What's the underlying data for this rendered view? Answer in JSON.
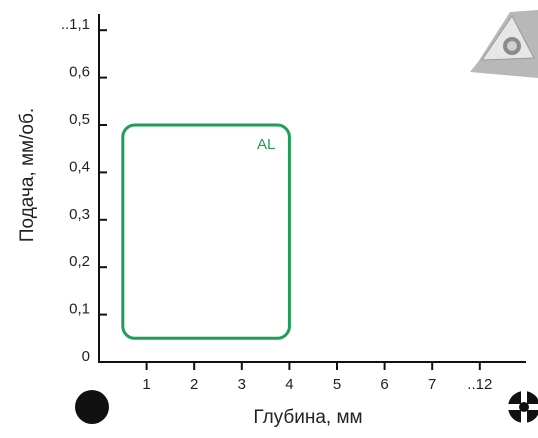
{
  "chart_data": {
    "type": "region",
    "x_label": "Глубина, мм",
    "y_label": "Подача, мм/об.",
    "xlim": [
      0,
      12
    ],
    "xticks": [
      1,
      2,
      3,
      4,
      5,
      6,
      7,
      {
        "value": 12,
        "label": "..12"
      }
    ],
    "ylim": [
      0,
      1.1
    ],
    "yticks": [
      0,
      {
        "value": 0.1,
        "label": "0,1"
      },
      {
        "value": 0.2,
        "label": "0,2"
      },
      {
        "value": 0.3,
        "label": "0,3"
      },
      {
        "value": 0.4,
        "label": "0,4"
      },
      {
        "value": 0.5,
        "label": "0,5"
      },
      {
        "value": 0.6,
        "label": "0,6"
      },
      {
        "value": 1.1,
        "label": "..1,1"
      }
    ],
    "regions": [
      {
        "name": "AL",
        "color": "#1f9e55",
        "x": [
          0.5,
          4
        ],
        "y": [
          0.05,
          0.5
        ]
      }
    ]
  }
}
